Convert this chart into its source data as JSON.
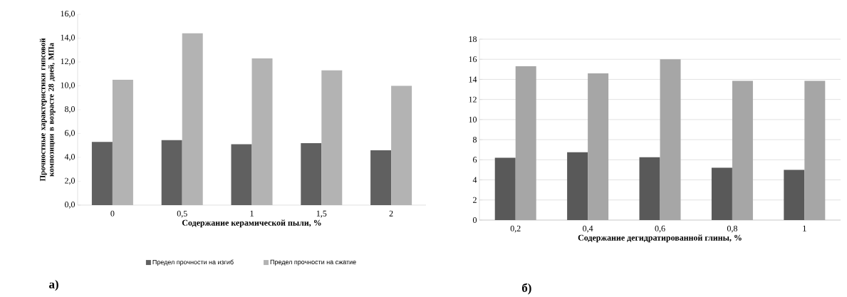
{
  "chart_data": [
    {
      "type": "bar",
      "categories": [
        "0",
        "0,5",
        "1",
        "1,5",
        "2"
      ],
      "xlabel": "Содержание керамической пыли, %",
      "ylabel": "Прочностные характеристики гипсовой композиции в возрасте 28 дней, МПа",
      "series": [
        {
          "name": "Предел прочности на изгиб",
          "color": "#606060",
          "values": [
            5.3,
            5.45,
            5.1,
            5.2,
            4.6
          ]
        },
        {
          "name": "Предел прочности на сжатие",
          "color": "#b3b3b3",
          "values": [
            10.5,
            14.4,
            12.3,
            11.3,
            10.0
          ]
        }
      ],
      "ylim": [
        0,
        16
      ],
      "yticks": [
        {
          "value": 0,
          "label": "0,0"
        },
        {
          "value": 2,
          "label": "2,0"
        },
        {
          "value": 4,
          "label": "4,0"
        },
        {
          "value": 6,
          "label": "6,0"
        },
        {
          "value": 8,
          "label": "8,0"
        },
        {
          "value": 10,
          "label": "10,0"
        },
        {
          "value": 12,
          "label": "12,0"
        },
        {
          "value": 14,
          "label": "14,0"
        },
        {
          "value": 16,
          "label": "16,0"
        }
      ],
      "legend": "bottom",
      "annotations": [
        "а)"
      ]
    },
    {
      "type": "bar",
      "categories": [
        "0,2",
        "0,4",
        "0,6",
        "0,8",
        "1"
      ],
      "xlabel": "Содержание дегидратированной глины, %",
      "series": [
        {
          "color": "#595959",
          "values": [
            6.2,
            6.75,
            6.25,
            5.2,
            5.0
          ]
        },
        {
          "color": "#a6a6a6",
          "values": [
            15.3,
            14.6,
            16.0,
            13.85,
            13.85
          ]
        }
      ],
      "ylim": [
        0,
        18
      ],
      "yticks": [
        0,
        2,
        4,
        6,
        8,
        10,
        12,
        14,
        16,
        18
      ],
      "grid": "y",
      "annotations": [
        "б)"
      ]
    }
  ]
}
